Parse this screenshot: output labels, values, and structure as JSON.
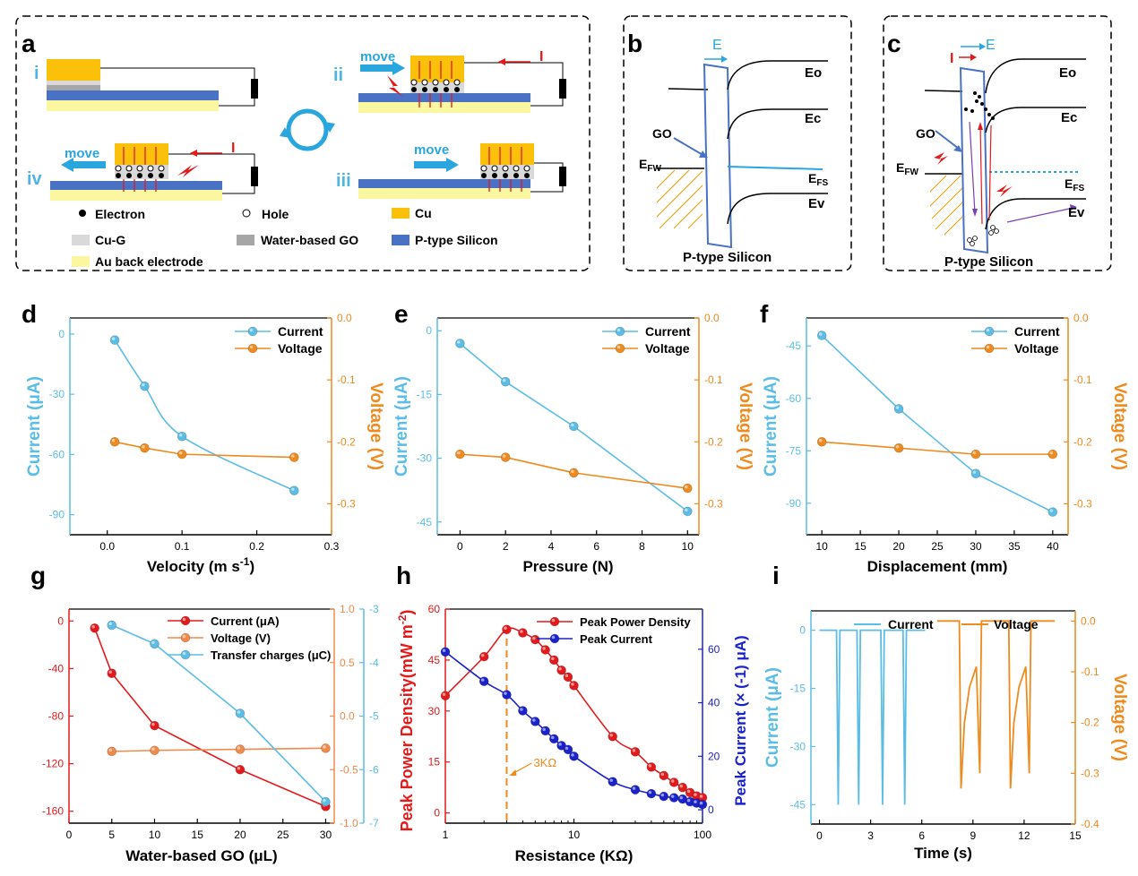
{
  "panel_letters": {
    "a": "a",
    "b": "b",
    "c": "c",
    "d": "d",
    "e": "e",
    "f": "f",
    "g": "g",
    "h": "h",
    "i": "i"
  },
  "colors": {
    "cyan": "#5bbde6",
    "orange": "#ee8a1e",
    "red": "#e31a1c",
    "blue": "#1a22cc",
    "gold": "#fbc10a",
    "silicon": "#4a72c4",
    "au": "#fbf6a0",
    "cug": "#d9d9d9",
    "go": "#a6a6a6"
  },
  "schematic_a": {
    "stage_labels": [
      "i",
      "ii",
      "iii",
      "iv"
    ],
    "move_label": "move",
    "current_label": "I",
    "legend": {
      "electron": "Electron",
      "hole": "Hole",
      "cu": "Cu",
      "cug": "Cu-G",
      "go": "Water-based GO",
      "psi": "P-type Silicon",
      "au": "Au back electrode"
    }
  },
  "band_b": {
    "field": "E",
    "go": "GO",
    "efw": "E",
    "efw_sub": "FW",
    "efs": "E",
    "efs_sub": "FS",
    "eo": "Eo",
    "ec": "Ec",
    "ev": "Ev",
    "si": "P-type Silicon"
  },
  "band_c": {
    "current": "I",
    "field": "E",
    "go": "GO",
    "efw": "E",
    "efw_sub": "FW",
    "efs": "E",
    "efs_sub": "FS",
    "eo": "Eo",
    "ec": "Ec",
    "ev": "Ev",
    "si": "P-type Silicon"
  },
  "chart_data": [
    {
      "panel": "d",
      "type": "line",
      "xlabel": "Velocity (m s",
      "xlabel_sup": "-1",
      "xlabel_end": ")",
      "ylabel": "Current (μA)",
      "y2label": "Voltage (V)",
      "xlim": [
        -0.05,
        0.3
      ],
      "ylim": [
        -100,
        8
      ],
      "y2lim": [
        -0.35,
        0.0
      ],
      "xticks": [
        0.0,
        0.1,
        0.2,
        0.3
      ],
      "xtick_labels": [
        "0.0",
        "0.1",
        "0.2",
        "0.3"
      ],
      "yticks": [
        0,
        -30,
        -60,
        -90
      ],
      "ytick_labels": [
        "0",
        "-30",
        "-60",
        "-90"
      ],
      "y2ticks": [
        0.0,
        -0.1,
        -0.2,
        -0.3
      ],
      "y2tick_labels": [
        "0.0",
        "-0.1",
        "-0.2",
        "-0.3"
      ],
      "legend_position": "top-right",
      "series": [
        {
          "name": "Current",
          "axis": "left",
          "color": "#5bbde6",
          "smooth": true,
          "x": [
            0.01,
            0.05,
            0.1,
            0.25
          ],
          "y": [
            -3,
            -26,
            -51,
            -78
          ]
        },
        {
          "name": "Voltage",
          "axis": "right",
          "color": "#ee8a1e",
          "x": [
            0.01,
            0.05,
            0.1,
            0.25
          ],
          "y": [
            -0.2,
            -0.21,
            -0.22,
            -0.225
          ]
        }
      ]
    },
    {
      "panel": "e",
      "type": "line",
      "xlabel": "Pressure  (N)",
      "ylabel": "Current (μA)",
      "y2label": "Voltage (V)",
      "xlim": [
        -1,
        10.5
      ],
      "ylim": [
        -48,
        3
      ],
      "y2lim": [
        -0.35,
        0.0
      ],
      "xticks": [
        0,
        2,
        4,
        6,
        8,
        10
      ],
      "xtick_labels": [
        "0",
        "2",
        "4",
        "6",
        "8",
        "10"
      ],
      "yticks": [
        0,
        -15,
        -30,
        -45
      ],
      "ytick_labels": [
        "0",
        "-15",
        "-30",
        "-45"
      ],
      "y2ticks": [
        0.0,
        -0.1,
        -0.2,
        -0.3
      ],
      "y2tick_labels": [
        "0.0",
        "-0.1",
        "-0.2",
        "-0.3"
      ],
      "legend_position": "top-right",
      "series": [
        {
          "name": "Current",
          "axis": "left",
          "color": "#5bbde6",
          "x": [
            0,
            2,
            5,
            10
          ],
          "y": [
            -3,
            -12,
            -22.5,
            -42.5
          ]
        },
        {
          "name": "Voltage",
          "axis": "right",
          "color": "#ee8a1e",
          "x": [
            0,
            2,
            5,
            10
          ],
          "y": [
            -0.22,
            -0.225,
            -0.25,
            -0.275
          ]
        }
      ]
    },
    {
      "panel": "f",
      "type": "line",
      "xlabel": "Displacement (mm)",
      "ylabel": "Current (μA)",
      "y2label": "Voltage (V)",
      "xlim": [
        8,
        42
      ],
      "ylim": [
        -99,
        -37
      ],
      "y2lim": [
        -0.35,
        0.0
      ],
      "xticks": [
        10,
        15,
        20,
        25,
        30,
        35,
        40
      ],
      "xtick_labels": [
        "10",
        "15",
        "20",
        "25",
        "30",
        "35",
        "40"
      ],
      "yticks": [
        -45,
        -60,
        -75,
        -90
      ],
      "ytick_labels": [
        "-45",
        "-60",
        "-75",
        "-90"
      ],
      "y2ticks": [
        0.0,
        -0.1,
        -0.2,
        -0.3
      ],
      "y2tick_labels": [
        "0.0",
        "-0.1",
        "-0.2",
        "-0.3"
      ],
      "legend_position": "top-right",
      "series": [
        {
          "name": "Current",
          "axis": "left",
          "color": "#5bbde6",
          "x": [
            10,
            20,
            30,
            40
          ],
          "y": [
            -42,
            -63,
            -81.5,
            -92.5
          ]
        },
        {
          "name": "Voltage",
          "axis": "right",
          "color": "#ee8a1e",
          "x": [
            10,
            20,
            30,
            40
          ],
          "y": [
            -0.2,
            -0.21,
            -0.22,
            -0.22
          ]
        }
      ]
    },
    {
      "panel": "g",
      "type": "line",
      "xlabel": "Water-based GO (μL)",
      "xlim": [
        0,
        31
      ],
      "ylim": [
        -170,
        10
      ],
      "y2lim": [
        -1.0,
        1.0
      ],
      "y3lim": [
        -7,
        -3
      ],
      "xticks": [
        0,
        5,
        10,
        15,
        20,
        25,
        30
      ],
      "xtick_labels": [
        "0",
        "5",
        "10",
        "15",
        "20",
        "25",
        "30"
      ],
      "yticks": [
        0,
        -40,
        -80,
        -120,
        -160
      ],
      "ytick_labels": [
        "0",
        "-40",
        "-80",
        "-120",
        "-160"
      ],
      "y2ticks": [
        1.0,
        0.5,
        0.0,
        -0.5,
        -1.0
      ],
      "y2tick_labels": [
        "1.0",
        "0.5",
        "0.0",
        "-0.5",
        "-1.0"
      ],
      "y3ticks": [
        -3,
        -4,
        -5,
        -6,
        -7
      ],
      "y3tick_labels": [
        "-3",
        "-4",
        "-5",
        "-6",
        "-7"
      ],
      "legend_position": "top-right",
      "series": [
        {
          "name": "Current  (μA)",
          "axis": "left",
          "color": "#e31a1c",
          "x": [
            3,
            5,
            10,
            20,
            30
          ],
          "y": [
            -6,
            -44,
            -88,
            -125,
            -156
          ]
        },
        {
          "name": "Voltage  (V)",
          "axis": "right",
          "color": "#f08a4b",
          "x": [
            5,
            10,
            20,
            30
          ],
          "y": [
            -0.33,
            -0.32,
            -0.31,
            -0.3
          ]
        },
        {
          "name": "Transfer charges (μC)",
          "axis": "right2",
          "color": "#5bbde6",
          "x": [
            5,
            10,
            20,
            30
          ],
          "y": [
            -3.3,
            -3.65,
            -4.95,
            -6.6
          ]
        }
      ]
    },
    {
      "panel": "h",
      "type": "line",
      "xscale": "log",
      "xlabel": "Resistance (KΩ)",
      "ylabel": "Peak Power Density(mW m",
      "ylabel_sup": "-2",
      "ylabel_end": ")",
      "y2label": "Peak Current (× (-1) μA)",
      "xlim": [
        1,
        100
      ],
      "ylim": [
        -3,
        60
      ],
      "y2lim": [
        -5,
        75
      ],
      "xticks": [
        1,
        10,
        100
      ],
      "xtick_labels": [
        "1",
        "10",
        "100"
      ],
      "yticks": [
        0,
        15,
        30,
        45,
        60
      ],
      "ytick_labels": [
        "0",
        "15",
        "30",
        "45",
        "60"
      ],
      "y2ticks": [
        0,
        20,
        40,
        60
      ],
      "y2tick_labels": [
        "0",
        "20",
        "40",
        "60"
      ],
      "annotation": "3KΩ",
      "annotation_x": 3,
      "legend_position": "top-right",
      "series": [
        {
          "name": "Peak Power Density",
          "axis": "left",
          "color": "#e31a1c",
          "x": [
            1,
            2,
            3,
            4,
            5,
            6,
            7,
            8,
            9,
            10,
            20,
            30,
            40,
            50,
            60,
            70,
            80,
            90,
            100
          ],
          "y": [
            34.5,
            46,
            54,
            53,
            51,
            48,
            45,
            42,
            40,
            37.5,
            22.5,
            18,
            13.5,
            11,
            9,
            7.5,
            6,
            5,
            4.5
          ]
        },
        {
          "name": "Peak Current",
          "axis": "right",
          "color": "#1a22cc",
          "x": [
            1,
            2,
            3,
            4,
            5,
            6,
            7,
            8,
            9,
            10,
            20,
            30,
            40,
            50,
            60,
            70,
            80,
            90,
            100
          ],
          "y": [
            59,
            48,
            43,
            37,
            33,
            29.5,
            26.5,
            24,
            22.5,
            20,
            10.5,
            7.5,
            6,
            5,
            4.5,
            4,
            3,
            2.5,
            2
          ]
        }
      ]
    },
    {
      "panel": "i",
      "type": "line",
      "xlabel": "Time (s)",
      "ylabel": "Current (μA)",
      "y2label": "Voltage (V)",
      "xlim": [
        -0.5,
        15
      ],
      "ylim": [
        -50,
        5
      ],
      "y2lim": [
        -0.4,
        0.02
      ],
      "xticks": [
        0,
        3,
        6,
        9,
        12,
        15
      ],
      "xtick_labels": [
        "0",
        "3",
        "6",
        "9",
        "12",
        "15"
      ],
      "yticks": [
        0,
        -15,
        -30,
        -45
      ],
      "ytick_labels": [
        "0",
        "-15",
        "-30",
        "-45"
      ],
      "y2ticks": [
        0.0,
        -0.1,
        -0.2,
        -0.3,
        -0.4
      ],
      "y2tick_labels": [
        "0.0",
        "-0.1",
        "-0.2",
        "-0.3",
        "-0.4"
      ],
      "legend_position": "top",
      "series": [
        {
          "name": "Current",
          "axis": "left",
          "color": "#5bbde6",
          "x": [
            0,
            1.0,
            1.1,
            1.2,
            2.2,
            2.3,
            2.4,
            3.6,
            3.7,
            3.8,
            4.9,
            5.0,
            5.1,
            6.2
          ],
          "y": [
            0,
            0,
            -45,
            0,
            0,
            -45,
            0,
            0,
            -45,
            0,
            0,
            -45,
            0,
            0
          ]
        },
        {
          "name": "Voltage",
          "axis": "right",
          "color": "#ee8a1e",
          "x": [
            6.9,
            8.2,
            8.3,
            8.5,
            8.8,
            9.2,
            9.4,
            9.5,
            9.6,
            11.1,
            11.2,
            11.4,
            11.7,
            12.1,
            12.3,
            12.4,
            12.5,
            13.8
          ],
          "y": [
            0,
            0,
            -0.33,
            -0.2,
            -0.13,
            -0.09,
            -0.3,
            0,
            0,
            0,
            -0.33,
            -0.2,
            -0.13,
            -0.09,
            -0.3,
            0,
            0,
            0
          ]
        }
      ]
    }
  ]
}
